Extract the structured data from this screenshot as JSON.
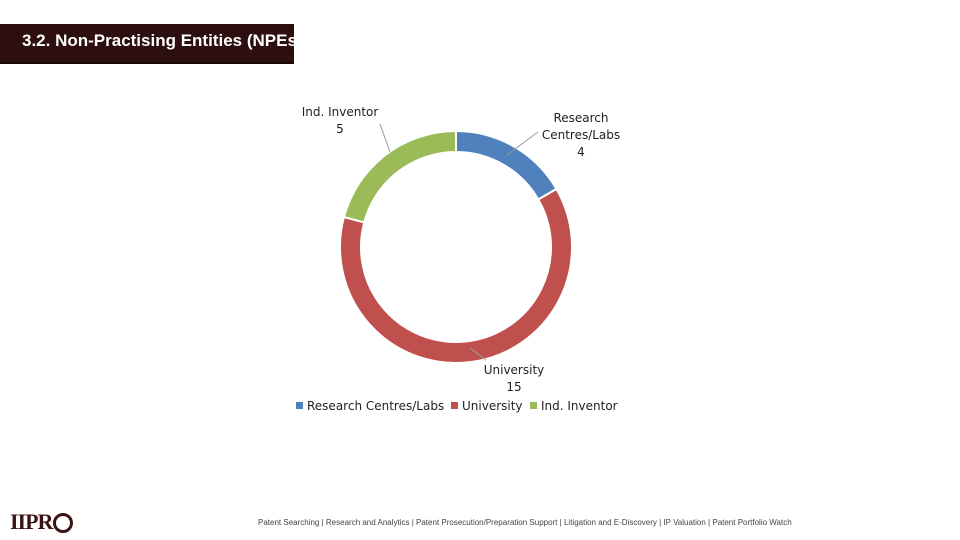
{
  "page": {
    "title": "3.2. Non-Practising Entities (NPEs)",
    "footer": "Patent Searching | Research and Analytics | Patent Prosecution/Preparation Support | Litigation and E-Discovery | IP Valuation | Patent Portfolio Watch",
    "logo_text": "IIPR"
  },
  "chart_data": {
    "type": "pie",
    "variant": "doughnut",
    "title": "",
    "categories": [
      "Research Centres/Labs",
      "University",
      "Ind. Inventor"
    ],
    "values": [
      4,
      15,
      5
    ],
    "colors": [
      "#4f81bd",
      "#c0504d",
      "#9bbb59"
    ],
    "data_labels": [
      {
        "category": "Research Centres/Labs",
        "lines": [
          "Research",
          "Centres/Labs",
          "4"
        ]
      },
      {
        "category": "University",
        "lines": [
          "University",
          "15"
        ]
      },
      {
        "category": "Ind. Inventor",
        "lines": [
          "Ind. Inventor",
          "5"
        ]
      }
    ],
    "legend": {
      "position": "bottom",
      "entries": [
        "Research Centres/Labs",
        "University",
        "Ind. Inventor"
      ]
    }
  }
}
